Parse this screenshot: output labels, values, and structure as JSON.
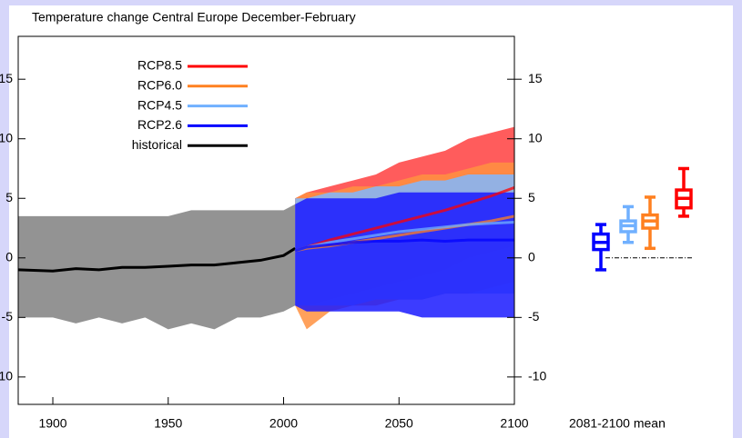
{
  "chart_data": {
    "type": "line",
    "title": "Temperature change Central Europe December-February",
    "box_label": "2081-2100 mean",
    "xlim": [
      1885,
      2100
    ],
    "xticks": [
      1900,
      1950,
      2000,
      2050,
      2100
    ],
    "ylim": [
      -12.3,
      18.6
    ],
    "yticks": [
      -10,
      -5,
      0,
      5,
      10,
      15
    ],
    "series": [
      {
        "name": "RCP8.5",
        "color": "#ff0000",
        "band_color": "#ff4040",
        "x": [
          2005,
          2010,
          2020,
          2030,
          2040,
          2050,
          2060,
          2070,
          2080,
          2090,
          2100
        ],
        "values": [
          0.6,
          0.9,
          1.5,
          2,
          2.5,
          3,
          3.5,
          4,
          4.6,
          5.2,
          5.9
        ],
        "lower": [
          -4,
          -4,
          -3.5,
          -3,
          -2.5,
          -2,
          -1.5,
          -1,
          0,
          0.5,
          1
        ],
        "upper": [
          5,
          5.5,
          6,
          6.5,
          7,
          8,
          8.5,
          9,
          10,
          10.5,
          11
        ],
        "box": {
          "min": 3.5,
          "q1": 4.2,
          "median": 5,
          "q3": 5.7,
          "max": 7.5
        }
      },
      {
        "name": "RCP6.0",
        "color": "#ff8020",
        "band_color": "#ff9040",
        "x": [
          2005,
          2010,
          2020,
          2030,
          2040,
          2050,
          2060,
          2070,
          2080,
          2090,
          2100
        ],
        "values": [
          0.6,
          0.8,
          1,
          1.3,
          1.6,
          1.9,
          2.2,
          2.5,
          2.8,
          3.1,
          3.5
        ],
        "lower": [
          -4,
          -6,
          -4.5,
          -4,
          -4,
          -3.5,
          -3.5,
          -3,
          -3,
          -2.5,
          -2
        ],
        "upper": [
          5,
          5.5,
          5.5,
          6,
          6,
          6.5,
          7,
          7,
          7.5,
          8,
          8
        ],
        "box": {
          "min": 0.8,
          "q1": 2.5,
          "median": 3.1,
          "q3": 3.6,
          "max": 5.1
        }
      },
      {
        "name": "RCP4.5",
        "color": "#70b0ff",
        "band_color": "#80b8ff",
        "x": [
          2005,
          2010,
          2020,
          2030,
          2040,
          2050,
          2060,
          2070,
          2080,
          2090,
          2100
        ],
        "values": [
          0.6,
          0.9,
          1.3,
          1.6,
          1.9,
          2.2,
          2.4,
          2.6,
          2.8,
          2.9,
          3
        ],
        "lower": [
          -4,
          -4,
          -4,
          -4,
          -3.5,
          -3.5,
          -3.5,
          -3,
          -3,
          -3,
          -3
        ],
        "upper": [
          5,
          5,
          5.5,
          5.5,
          6,
          6,
          6.5,
          6.5,
          7,
          7,
          7
        ],
        "box": {
          "min": 1.3,
          "q1": 2.2,
          "median": 2.7,
          "q3": 3.1,
          "max": 4.3
        }
      },
      {
        "name": "RCP2.6",
        "color": "#0000ff",
        "band_color": "#1a1aff",
        "x": [
          2005,
          2010,
          2020,
          2030,
          2040,
          2050,
          2060,
          2070,
          2080,
          2090,
          2100
        ],
        "values": [
          0.6,
          0.9,
          1.1,
          1.3,
          1.4,
          1.4,
          1.5,
          1.4,
          1.5,
          1.5,
          1.5
        ],
        "lower": [
          -4,
          -4.5,
          -4.5,
          -4.5,
          -4.5,
          -4.5,
          -5,
          -5,
          -5,
          -5,
          -5
        ],
        "upper": [
          4.5,
          5,
          5,
          5,
          5,
          5.5,
          5.5,
          5.5,
          5.5,
          5.5,
          5.5
        ],
        "box": {
          "min": -1,
          "q1": 0.7,
          "median": 1.3,
          "q3": 2,
          "max": 2.8
        }
      },
      {
        "name": "historical",
        "color": "#000000",
        "band_color": "#808080",
        "x": [
          1885,
          1900,
          1910,
          1920,
          1930,
          1940,
          1950,
          1960,
          1970,
          1980,
          1990,
          2000,
          2005
        ],
        "values": [
          -1,
          -1.1,
          -0.9,
          -1,
          -0.8,
          -0.8,
          -0.7,
          -0.6,
          -0.6,
          -0.4,
          -0.2,
          0.2,
          0.8
        ],
        "lower": [
          -5,
          -5,
          -5.5,
          -5,
          -5.5,
          -5,
          -6,
          -5.5,
          -6,
          -5,
          -5,
          -4.5,
          -4
        ],
        "upper": [
          3.5,
          3.5,
          3.5,
          3.5,
          3.5,
          3.5,
          3.5,
          4,
          4,
          4,
          4,
          4,
          4.5
        ]
      }
    ]
  }
}
